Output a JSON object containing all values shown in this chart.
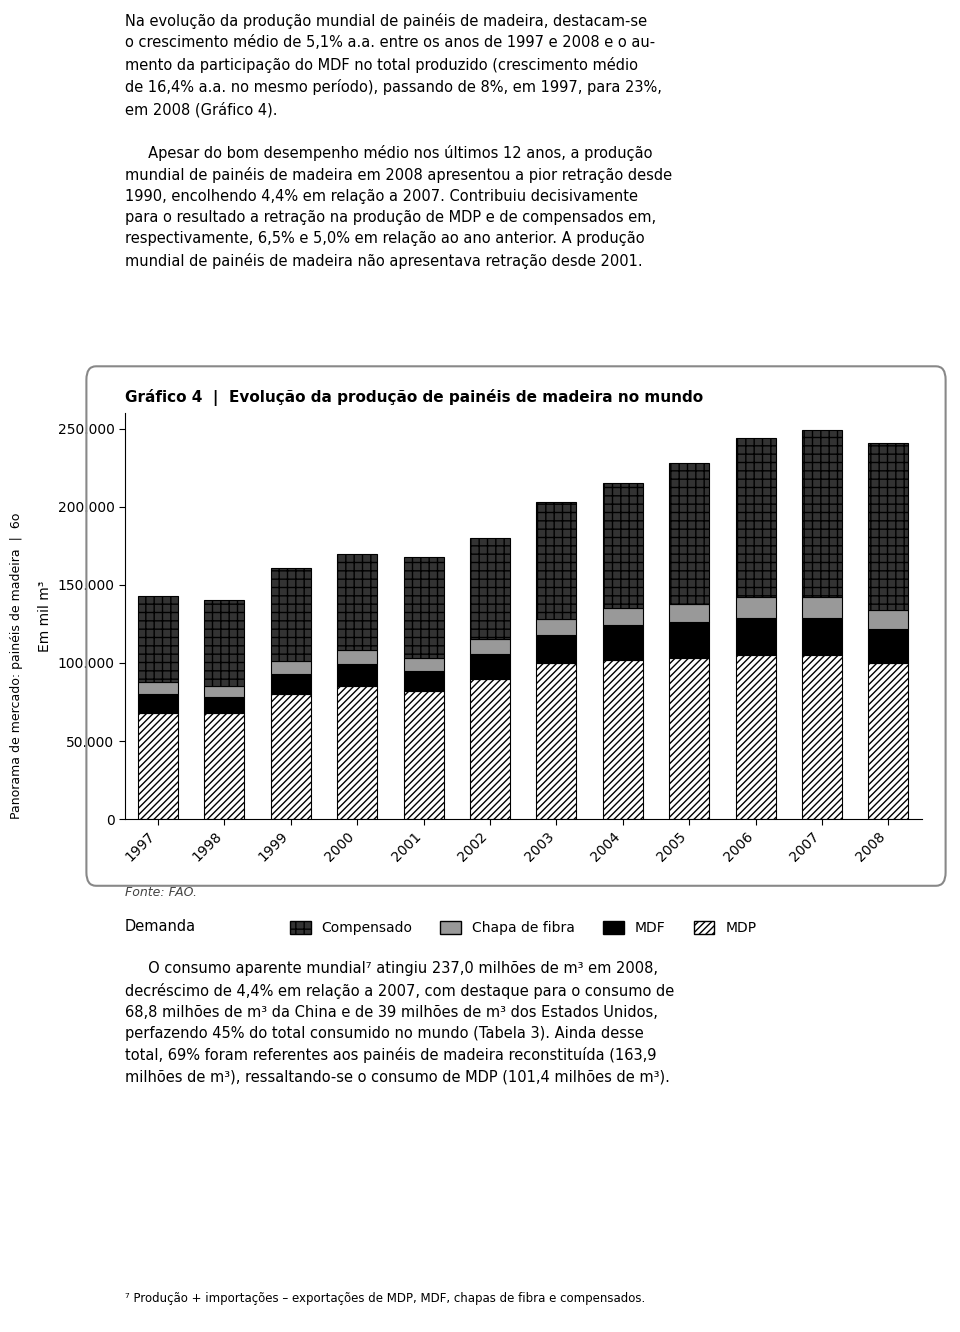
{
  "years": [
    1997,
    1998,
    1999,
    2000,
    2001,
    2002,
    2003,
    2004,
    2005,
    2006,
    2007,
    2008
  ],
  "MDP": [
    68000,
    68000,
    80000,
    85000,
    82000,
    90000,
    100000,
    102000,
    103000,
    105000,
    105000,
    100000
  ],
  "MDF": [
    12000,
    10000,
    13000,
    14000,
    13000,
    16000,
    18000,
    22000,
    23000,
    24000,
    24000,
    22000
  ],
  "Chapa_de_fibra": [
    8000,
    7000,
    8000,
    9000,
    8000,
    9000,
    10000,
    11000,
    12000,
    13000,
    13000,
    12000
  ],
  "Compensado": [
    55000,
    55000,
    60000,
    62000,
    65000,
    65000,
    75000,
    80000,
    90000,
    102000,
    107000,
    107000
  ],
  "title": "Gráfico 4  |  Evolução da produção de painéis de madeira no mundo",
  "ylabel": "Em mil m³",
  "ylim": [
    0,
    260000
  ],
  "yticks": [
    0,
    50000,
    100000,
    150000,
    200000,
    250000
  ],
  "ytick_labels": [
    "0",
    "50.000",
    "100.000",
    "150.000",
    "200.000",
    "250.000"
  ],
  "fonte": "Fonte: FAO.",
  "background_color": "#ffffff",
  "border_color": "#888888"
}
